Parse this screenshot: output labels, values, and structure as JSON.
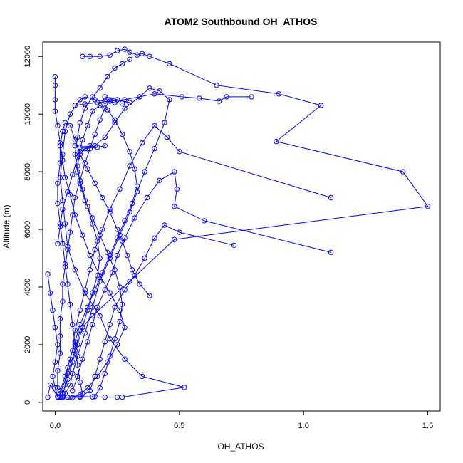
{
  "chart_data": {
    "type": "scatter",
    "title": "ATOM2 Southbound OH_ATHOS",
    "xlabel": "OH_ATHOS",
    "ylabel": "Altitude (m)",
    "xlim": [
      -0.05,
      1.55
    ],
    "ylim": [
      -300,
      12500
    ],
    "x_ticks": [
      0.0,
      0.5,
      1.0,
      1.5
    ],
    "x_tick_labels": [
      "0.0",
      "0.5",
      "1.0",
      "1.5"
    ],
    "y_ticks": [
      0,
      2000,
      4000,
      6000,
      8000,
      10000,
      12000
    ],
    "y_tick_labels": [
      "0",
      "2000",
      "4000",
      "6000",
      "8000",
      "10000",
      "12000"
    ],
    "grid": false,
    "legend": "none",
    "color": "#0000ff",
    "marker": "open-circle",
    "series": [
      {
        "points": [
          [
            0.02,
            180
          ],
          [
            0.05,
            180
          ],
          [
            0.1,
            200
          ],
          [
            0.15,
            190
          ],
          [
            0.2,
            180
          ],
          [
            0.25,
            180
          ],
          [
            0.27,
            180
          ],
          [
            0.52,
            520
          ],
          [
            0.35,
            900
          ],
          [
            0.28,
            1500
          ],
          [
            0.22,
            2200
          ],
          [
            0.18,
            3000
          ],
          [
            0.12,
            3800
          ],
          [
            0.08,
            4600
          ],
          [
            0.05,
            5400
          ],
          [
            0.04,
            6200
          ],
          [
            0.03,
            7000
          ],
          [
            0.02,
            7800
          ],
          [
            0.03,
            8600
          ],
          [
            0.04,
            9400
          ],
          [
            0.06,
            10000
          ],
          [
            0.1,
            10500
          ],
          [
            0.12,
            10600
          ],
          [
            0.16,
            10500
          ],
          [
            0.2,
            10450
          ],
          [
            0.24,
            10400
          ],
          [
            0.27,
            10380
          ],
          [
            0.3,
            10400
          ],
          [
            0.25,
            10500
          ],
          [
            0.2,
            10600
          ]
        ]
      },
      {
        "points": [
          [
            0.11,
            12000
          ],
          [
            0.14,
            12000
          ],
          [
            0.18,
            12000
          ],
          [
            0.22,
            12050
          ],
          [
            0.25,
            12200
          ],
          [
            0.28,
            12250
          ],
          [
            0.3,
            12150
          ],
          [
            0.33,
            12050
          ],
          [
            0.35,
            12100
          ],
          [
            0.38,
            12000
          ],
          [
            0.46,
            11750
          ],
          [
            0.65,
            11000
          ],
          [
            0.9,
            10700
          ],
          [
            1.07,
            10300
          ],
          [
            0.89,
            9050
          ],
          [
            1.4,
            8000
          ],
          [
            1.5,
            6800
          ],
          [
            0.48,
            5650
          ],
          [
            0.3,
            4200
          ],
          [
            0.15,
            3000
          ],
          [
            0.1,
            2500
          ],
          [
            0.08,
            1800
          ],
          [
            0.05,
            1000
          ],
          [
            0.02,
            300
          ],
          [
            0.01,
            180
          ]
        ]
      },
      {
        "points": [
          [
            0.02,
            200
          ],
          [
            0.04,
            300
          ],
          [
            0.06,
            600
          ],
          [
            0.07,
            1000
          ],
          [
            0.09,
            1600
          ],
          [
            0.12,
            2400
          ],
          [
            0.15,
            3300
          ],
          [
            0.18,
            4200
          ],
          [
            0.22,
            5000
          ],
          [
            0.26,
            5800
          ],
          [
            0.3,
            6600
          ],
          [
            0.33,
            7300
          ],
          [
            0.36,
            8000
          ],
          [
            0.4,
            8800
          ],
          [
            0.44,
            9700
          ],
          [
            0.46,
            10500
          ],
          [
            0.42,
            10800
          ],
          [
            0.38,
            10900
          ],
          [
            0.34,
            10600
          ],
          [
            0.28,
            10200
          ],
          [
            0.24,
            9700
          ],
          [
            0.2,
            9200
          ],
          [
            0.16,
            8900
          ],
          [
            0.13,
            8800
          ],
          [
            0.1,
            8850
          ],
          [
            0.08,
            8900
          ]
        ]
      },
      {
        "points": [
          [
            0.0,
            11300
          ],
          [
            0.0,
            11000
          ],
          [
            0.0,
            10500
          ],
          [
            0.0,
            10100
          ],
          [
            0.01,
            9600
          ],
          [
            0.02,
            9000
          ],
          [
            0.03,
            8400
          ],
          [
            0.04,
            7800
          ],
          [
            0.06,
            7200
          ],
          [
            0.08,
            6500
          ],
          [
            0.11,
            5800
          ],
          [
            0.14,
            5100
          ],
          [
            0.18,
            4400
          ],
          [
            0.22,
            3800
          ],
          [
            0.26,
            3200
          ],
          [
            0.28,
            2600
          ],
          [
            0.25,
            2000
          ],
          [
            0.21,
            1400
          ],
          [
            0.17,
            900
          ],
          [
            0.13,
            500
          ],
          [
            0.1,
            250
          ],
          [
            0.06,
            180
          ],
          [
            0.03,
            170
          ]
        ]
      },
      {
        "points": [
          [
            0.72,
            5450
          ],
          [
            0.5,
            5900
          ],
          [
            0.44,
            6150
          ],
          [
            0.4,
            5700
          ],
          [
            0.36,
            5000
          ],
          [
            0.32,
            4400
          ],
          [
            0.28,
            3900
          ],
          [
            0.24,
            3300
          ],
          [
            0.22,
            2700
          ],
          [
            0.2,
            2100
          ],
          [
            0.18,
            1500
          ],
          [
            0.16,
            900
          ],
          [
            0.14,
            400
          ],
          [
            0.1,
            180
          ],
          [
            0.07,
            170
          ]
        ]
      },
      {
        "points": [
          [
            1.11,
            7100
          ],
          [
            0.5,
            8700
          ],
          [
            0.45,
            9200
          ],
          [
            0.4,
            9600
          ],
          [
            0.35,
            9000
          ],
          [
            0.3,
            8200
          ],
          [
            0.26,
            7400
          ],
          [
            0.22,
            6700
          ],
          [
            0.19,
            6000
          ],
          [
            0.16,
            5300
          ],
          [
            0.14,
            4600
          ],
          [
            0.12,
            3900
          ],
          [
            0.1,
            3200
          ],
          [
            0.08,
            2500
          ],
          [
            0.07,
            1800
          ],
          [
            0.05,
            1200
          ],
          [
            0.04,
            600
          ],
          [
            0.03,
            200
          ]
        ]
      },
      {
        "points": [
          [
            1.11,
            5200
          ],
          [
            0.6,
            6300
          ],
          [
            0.48,
            6800
          ],
          [
            0.49,
            7400
          ],
          [
            0.48,
            8000
          ],
          [
            0.42,
            7700
          ],
          [
            0.37,
            7100
          ],
          [
            0.32,
            6400
          ],
          [
            0.28,
            5700
          ],
          [
            0.25,
            5100
          ],
          [
            0.23,
            4500
          ],
          [
            0.2,
            3900
          ],
          [
            0.17,
            3300
          ],
          [
            0.15,
            2700
          ],
          [
            0.13,
            2100
          ],
          [
            0.11,
            1500
          ],
          [
            0.09,
            900
          ],
          [
            0.07,
            400
          ]
        ]
      },
      {
        "points": [
          [
            0.79,
            10600
          ],
          [
            0.69,
            10600
          ],
          [
            0.66,
            10450
          ],
          [
            0.58,
            10550
          ],
          [
            0.51,
            10600
          ],
          [
            0.4,
            10700
          ],
          [
            0.34,
            10600
          ],
          [
            0.28,
            10500
          ],
          [
            0.22,
            10450
          ],
          [
            0.17,
            10400
          ],
          [
            0.12,
            10350
          ],
          [
            0.08,
            10300
          ]
        ]
      },
      {
        "points": [
          [
            -0.03,
            4450
          ],
          [
            -0.02,
            3800
          ],
          [
            -0.01,
            3200
          ],
          [
            0.0,
            2600
          ],
          [
            0.01,
            2000
          ],
          [
            0.0,
            1400
          ],
          [
            -0.01,
            900
          ],
          [
            0.0,
            500
          ],
          [
            0.01,
            200
          ],
          [
            -0.02,
            600
          ],
          [
            -0.03,
            180
          ]
        ]
      },
      {
        "points": [
          [
            0.01,
            5500
          ],
          [
            0.02,
            6100
          ],
          [
            0.03,
            6700
          ],
          [
            0.05,
            7300
          ],
          [
            0.07,
            7900
          ],
          [
            0.09,
            8500
          ],
          [
            0.11,
            9100
          ],
          [
            0.13,
            9600
          ],
          [
            0.15,
            10100
          ],
          [
            0.18,
            10300
          ],
          [
            0.21,
            10150
          ],
          [
            0.24,
            9800
          ],
          [
            0.27,
            9300
          ],
          [
            0.3,
            8700
          ],
          [
            0.32,
            8100
          ],
          [
            0.33,
            7500
          ],
          [
            0.31,
            6900
          ],
          [
            0.28,
            6300
          ],
          [
            0.25,
            5700
          ],
          [
            0.22,
            5100
          ],
          [
            0.19,
            4500
          ],
          [
            0.16,
            3900
          ],
          [
            0.13,
            3300
          ],
          [
            0.1,
            2700
          ],
          [
            0.08,
            2100
          ],
          [
            0.06,
            1500
          ],
          [
            0.04,
            900
          ],
          [
            0.02,
            400
          ]
        ]
      },
      {
        "points": [
          [
            0.38,
            3700
          ],
          [
            0.34,
            4100
          ],
          [
            0.31,
            4600
          ],
          [
            0.29,
            5100
          ],
          [
            0.27,
            5600
          ],
          [
            0.25,
            6000
          ],
          [
            0.22,
            6600
          ],
          [
            0.19,
            7100
          ],
          [
            0.16,
            7600
          ],
          [
            0.13,
            8100
          ],
          [
            0.1,
            8600
          ],
          [
            0.08,
            9100
          ],
          [
            0.06,
            9600
          ],
          [
            0.04,
            9700
          ],
          [
            0.03,
            9400
          ],
          [
            0.02,
            8900
          ],
          [
            0.02,
            8300
          ],
          [
            0.01,
            7600
          ],
          [
            0.01,
            6900
          ],
          [
            0.02,
            6200
          ],
          [
            0.03,
            5500
          ],
          [
            0.04,
            4800
          ],
          [
            0.05,
            4100
          ],
          [
            0.06,
            3400
          ],
          [
            0.07,
            2700
          ],
          [
            0.08,
            2000
          ],
          [
            0.09,
            1300
          ],
          [
            0.1,
            700
          ],
          [
            0.11,
            300
          ]
        ]
      },
      {
        "points": [
          [
            0.2,
            8900
          ],
          [
            0.17,
            8850
          ],
          [
            0.14,
            8900
          ],
          [
            0.12,
            8800
          ],
          [
            0.1,
            8700
          ],
          [
            0.09,
            8200
          ],
          [
            0.1,
            7600
          ],
          [
            0.12,
            7000
          ],
          [
            0.15,
            6400
          ],
          [
            0.18,
            5800
          ],
          [
            0.21,
            5200
          ],
          [
            0.24,
            4600
          ],
          [
            0.26,
            4000
          ],
          [
            0.27,
            3400
          ],
          [
            0.26,
            2800
          ],
          [
            0.24,
            2200
          ],
          [
            0.22,
            1600
          ],
          [
            0.2,
            1000
          ],
          [
            0.18,
            500
          ],
          [
            0.16,
            200
          ]
        ]
      },
      {
        "points": [
          [
            0.22,
            10500
          ],
          [
            0.2,
            10200
          ],
          [
            0.18,
            9800
          ],
          [
            0.16,
            9300
          ],
          [
            0.14,
            8800
          ],
          [
            0.12,
            8300
          ],
          [
            0.1,
            7700
          ],
          [
            0.08,
            7100
          ],
          [
            0.07,
            6500
          ],
          [
            0.06,
            5900
          ],
          [
            0.05,
            5300
          ],
          [
            0.04,
            4700
          ],
          [
            0.03,
            4100
          ],
          [
            0.03,
            3500
          ],
          [
            0.02,
            2900
          ],
          [
            0.02,
            2300
          ],
          [
            0.02,
            1700
          ],
          [
            0.01,
            1100
          ],
          [
            0.01,
            500
          ]
        ]
      },
      {
        "points": [
          [
            0.3,
            11900
          ],
          [
            0.27,
            11750
          ],
          [
            0.24,
            11600
          ],
          [
            0.21,
            11300
          ],
          [
            0.18,
            10900
          ],
          [
            0.15,
            10600
          ],
          [
            0.12,
            10200
          ],
          [
            0.1,
            9700
          ],
          [
            0.09,
            9200
          ],
          [
            0.08,
            8600
          ],
          [
            0.09,
            8000
          ],
          [
            0.11,
            7400
          ],
          [
            0.13,
            6800
          ],
          [
            0.15,
            6200
          ],
          [
            0.17,
            5600
          ],
          [
            0.18,
            5000
          ],
          [
            0.17,
            4400
          ],
          [
            0.15,
            3800
          ],
          [
            0.13,
            3200
          ],
          [
            0.11,
            2600
          ],
          [
            0.09,
            2000
          ],
          [
            0.07,
            1400
          ],
          [
            0.05,
            800
          ],
          [
            0.03,
            300
          ]
        ]
      }
    ]
  }
}
